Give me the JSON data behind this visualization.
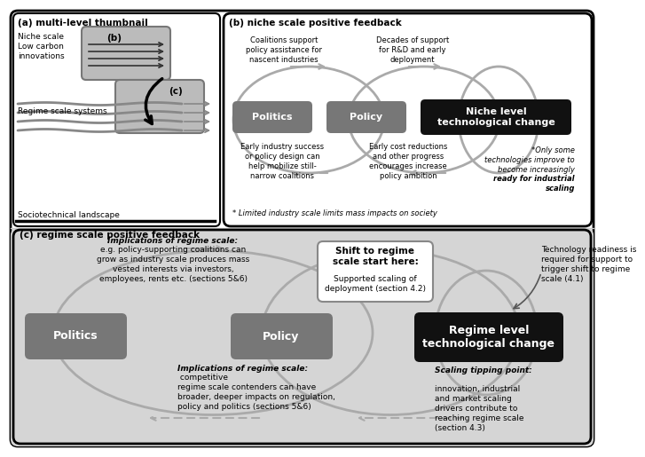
{
  "title_a": "(a) multi-level thumbnail",
  "title_b": "(b) niche scale positive feedback",
  "title_c": "(c) regime scale positive feedback",
  "niche_box_label_pol": "Politics",
  "niche_box_label_pol2": "Policy",
  "niche_box_label_tech": "Niche level\ntechnological change",
  "regime_box_label_pol": "Politics",
  "regime_box_label_pol2": "Policy",
  "regime_box_label_tech": "Regime level\ntechnological change",
  "niche_top_left_text": "Coalitions support\npolicy assistance for\nnascent industries",
  "niche_top_right_text": "Decades of support\nfor R&D and early\ndeployment",
  "niche_bot_left_text": "Early industry success\nor policy design can\nhelp mobilize still-\nnarrow coalitions",
  "niche_bot_right_text": "Early cost reductions\nand other progress\nencourages increase\npolicy ambition",
  "niche_bottom_note": "* Limited industry scale limits mass impacts on society",
  "niche_side_note_1": "*Only some\ntechnologies improve to\nbecome increasingly",
  "niche_side_note_2": "ready for industrial\nscaling",
  "regime_top_label": "Implications of regime scale:",
  "regime_top_body": "e.g. policy-supporting coalitions can\ngrow as industry scale produces mass\nvested interests via investors,\nemployees, rents etc. (sections 5&6)",
  "regime_bot_label": "Implications of regime scale:",
  "regime_bot_body": " competitive\nregime scale contenders can have\nbroader, deeper impacts on regulation,\npolicy and politics (sections 5&6)",
  "regime_shift_title": "Shift to regime\nscale start here:",
  "regime_shift_body": "Supported scaling of\ndeployment (section 4.2)",
  "regime_right_top": "Technology readiness is\nrequired for support to\ntrigger shift to regime\nscale (4.1)",
  "regime_right_bot_label": "Scaling tipping point:",
  "regime_right_bot_body": "\ninnovation, industrial\nand market scaling\ndrivers contribute to\nreaching regime scale\n(section 4.3)"
}
